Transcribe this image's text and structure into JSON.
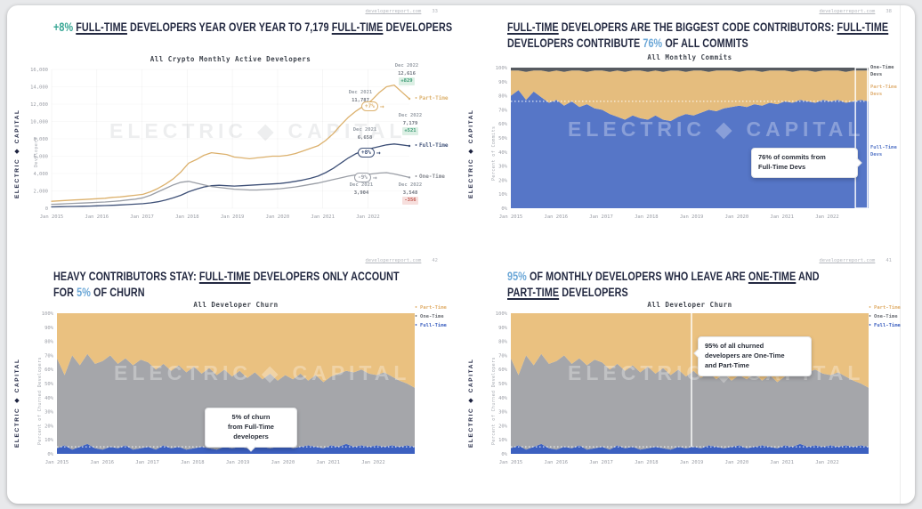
{
  "corner": {
    "site": "developerreport.com"
  },
  "slides": [
    {
      "page_num": "33",
      "title_lines": [
        [
          {
            "t": "+8% ",
            "s": "teal"
          },
          {
            "t": "FULL-TIME",
            "s": "u"
          },
          {
            "t": " DEVELOPERS YEAR OVER YEAR TO 7,179 ",
            "s": "plain"
          },
          {
            "t": "FULL-TIME",
            "s": "u"
          },
          {
            "t": " DEVELOPERS",
            "s": "plain"
          }
        ]
      ],
      "brand": "ELECTRIC ◆ CAPITAL",
      "watermark": "ELECTRIC ◆ CAPITAL"
    },
    {
      "page_num": "38",
      "title_lines": [
        [
          {
            "t": "FULL-TIME",
            "s": "u"
          },
          {
            "t": " DEVELOPERS ARE THE BIGGEST CODE CONTRIBUTORS: ",
            "s": "plain"
          },
          {
            "t": "FULL-TIME",
            "s": "u"
          }
        ],
        [
          {
            "t": "DEVELOPERS CONTRIBUTE ",
            "s": "plain"
          },
          {
            "t": "76%",
            "s": "blue"
          },
          {
            "t": " OF ALL COMMITS",
            "s": "plain"
          }
        ]
      ],
      "brand": "ELECTRIC ◆ CAPITAL",
      "watermark": "ELECTRIC ◆ CAPITAL"
    },
    {
      "page_num": "42",
      "title_lines": [
        [
          {
            "t": "HEAVY CONTRIBUTORS STAY: ",
            "s": "plain"
          },
          {
            "t": "FULL-TIME",
            "s": "u"
          },
          {
            "t": " DEVELOPERS ONLY ACCOUNT",
            "s": "plain"
          }
        ],
        [
          {
            "t": "FOR ",
            "s": "plain"
          },
          {
            "t": "5%",
            "s": "blue"
          },
          {
            "t": " OF CHURN",
            "s": "plain"
          }
        ]
      ],
      "brand": "ELECTRIC ◆ CAPITAL",
      "watermark": "ELECTRIC ◆ CAPITAL"
    },
    {
      "page_num": "41",
      "title_lines": [
        [
          {
            "t": "95%",
            "s": "blue"
          },
          {
            "t": " OF MONTHLY DEVELOPERS WHO LEAVE ARE ",
            "s": "plain"
          },
          {
            "t": "ONE-TIME",
            "s": "u"
          },
          {
            "t": " AND",
            "s": "plain"
          }
        ],
        [
          {
            "t": "PART-TIME",
            "s": "u"
          },
          {
            "t": " DEVELOPERS",
            "s": "plain"
          }
        ]
      ],
      "brand": "ELECTRIC ◆ CAPITAL",
      "watermark": "ELECTRIC ◆ CAPITAL"
    }
  ],
  "chart_data": [
    {
      "type": "line",
      "title": "All Crypto Monthly Active Developers",
      "ylabel": "Developers",
      "ymax": 16000,
      "ylim": [
        0,
        16000
      ],
      "grid": true,
      "y_tick_labels": [
        "16,000",
        "14,000",
        "12,000",
        "10,000",
        "8,000",
        "6,000",
        "4,000",
        "2,000",
        "0"
      ],
      "x_ticks": [
        "Jan 2015",
        "Jan 2016",
        "Jan 2017",
        "Jan 2018",
        "Jan 2019",
        "Jan 2020",
        "Jan 2021",
        "Jan 2022"
      ],
      "series": [
        {
          "name": "Part-Time",
          "color": "#dcb16d",
          "values": [
            800,
            850,
            900,
            950,
            1000,
            1050,
            1100,
            1150,
            1250,
            1300,
            1400,
            1500,
            1600,
            1900,
            2300,
            2800,
            3400,
            4200,
            5200,
            5600,
            6100,
            6400,
            6300,
            6200,
            5900,
            5800,
            5700,
            5800,
            5900,
            6000,
            6000,
            6100,
            6300,
            6600,
            6900,
            7200,
            7800,
            8600,
            9600,
            10500,
            11200,
            11787,
            12400,
            13300,
            14000,
            14200,
            13400,
            12616
          ]
        },
        {
          "name": "Full-Time",
          "color": "#3e5077",
          "values": [
            150,
            170,
            190,
            210,
            230,
            250,
            280,
            310,
            340,
            380,
            420,
            470,
            520,
            620,
            750,
            950,
            1200,
            1500,
            1900,
            2200,
            2450,
            2600,
            2650,
            2600,
            2550,
            2600,
            2650,
            2700,
            2750,
            2800,
            2850,
            2950,
            3100,
            3250,
            3450,
            3700,
            4100,
            4600,
            5200,
            5800,
            6300,
            6658,
            6900,
            7100,
            7300,
            7400,
            7300,
            7179
          ]
        },
        {
          "name": "One-Time",
          "color": "#9a9ea6",
          "values": [
            450,
            480,
            520,
            560,
            600,
            640,
            680,
            720,
            780,
            850,
            950,
            1050,
            1200,
            1500,
            1900,
            2300,
            2700,
            3000,
            3100,
            2900,
            2700,
            2500,
            2400,
            2300,
            2200,
            2150,
            2100,
            2100,
            2150,
            2200,
            2250,
            2350,
            2450,
            2600,
            2750,
            2900,
            3100,
            3300,
            3500,
            3700,
            3850,
            3904,
            3950,
            4050,
            4100,
            3950,
            3750,
            3548
          ]
        }
      ],
      "marker": "•",
      "annotations": {
        "part_time": {
          "prev_date": "Dec 2021",
          "prev_value": "11,787",
          "end_date": "Dec 2022",
          "end_value": "12,616",
          "delta": "+829",
          "pct": "+7%"
        },
        "full_time": {
          "prev_date": "Dec 2021",
          "prev_value": "6,658",
          "end_date": "Dec 2022",
          "end_value": "7,179",
          "delta": "+521",
          "pct": "+8%"
        },
        "one_time": {
          "prev_date": "Dec 2021",
          "prev_value": "3,904",
          "end_date": "Dec 2022",
          "end_value": "3,548",
          "delta": "-356",
          "pct": "-9%"
        }
      }
    },
    {
      "type": "area",
      "stack": "commits",
      "title": "All Monthly Commits",
      "ylabel": "Percent of Commits",
      "ymax": 100,
      "ylim": [
        0,
        100
      ],
      "y_tick_labels": [
        "100%",
        "90%",
        "80%",
        "70%",
        "60%",
        "50%",
        "40%",
        "30%",
        "20%",
        "10%",
        "0%"
      ],
      "x_ticks": [
        "Jan 2015",
        "Jan 2016",
        "Jan 2017",
        "Jan 2018",
        "Jan 2019",
        "Jan 2020",
        "Jan 2021",
        "Jan 2022"
      ],
      "colors": {
        "full_time": "#5676c7",
        "part_time": "#e5bd7e",
        "one_time": "#575b61"
      },
      "arrays": {
        "full_time": [
          80,
          84,
          77,
          83,
          79,
          75,
          77,
          73,
          76,
          72,
          74,
          71,
          70,
          67,
          65,
          63,
          66,
          64,
          63,
          66,
          63,
          62,
          65,
          67,
          66,
          68,
          70,
          69,
          71,
          72,
          73,
          72,
          74,
          73,
          75,
          74,
          76,
          75,
          77,
          76,
          75,
          77,
          76,
          77,
          75,
          76,
          77,
          76
        ],
        "one_time": [
          2,
          2,
          3,
          2,
          2,
          3,
          2,
          3,
          2,
          2,
          3,
          2,
          2,
          3,
          2,
          3,
          2,
          2,
          3,
          2,
          3,
          2,
          2,
          3,
          2,
          2,
          3,
          2,
          2,
          2,
          3,
          2,
          2,
          3,
          2,
          2,
          2,
          3,
          2,
          2,
          3,
          2,
          2,
          2,
          3,
          2,
          2,
          2
        ]
      },
      "dotted_line": 76,
      "highlight_band": [
        0.963,
        0.997
      ],
      "right_labels": {
        "one_time": "One-Time\nDevs",
        "part_time": "Part-Time\nDevs",
        "full_time": "Full-Time\nDevs"
      },
      "callout": {
        "line1": "76% of commits from",
        "line2": "Full-Time Devs"
      }
    },
    {
      "type": "area",
      "stack": "churn",
      "title": "All Developer Churn",
      "ylabel": "Percent of Churned Developers",
      "ymax": 100,
      "ylim": [
        0,
        100
      ],
      "y_tick_labels": [
        "100%",
        "90%",
        "80%",
        "70%",
        "60%",
        "50%",
        "40%",
        "30%",
        "20%",
        "10%",
        "0%"
      ],
      "x_ticks": [
        "Jan 2015",
        "Jan 2016",
        "Jan 2017",
        "Jan 2018",
        "Jan 2019",
        "Jan 2020",
        "Jan 2021",
        "Jan 2022"
      ],
      "colors": {
        "full_time": "#3c60c0",
        "one_time": "#a5a6aa",
        "part_time": "#eac180"
      },
      "arrays": {
        "full_time": [
          4,
          6,
          3,
          5,
          7,
          4,
          3,
          5,
          4,
          6,
          3,
          4,
          5,
          3,
          6,
          4,
          5,
          3,
          4,
          5,
          4,
          3,
          5,
          4,
          5,
          4,
          6,
          5,
          4,
          5,
          6,
          4,
          5,
          6,
          5,
          4,
          6,
          5,
          7,
          5,
          6,
          5,
          6,
          5,
          6,
          5,
          6,
          5
        ],
        "gray_top": [
          68,
          56,
          70,
          63,
          71,
          64,
          66,
          70,
          64,
          68,
          63,
          67,
          65,
          60,
          64,
          59,
          63,
          58,
          62,
          57,
          61,
          56,
          60,
          55,
          59,
          54,
          58,
          53,
          57,
          52,
          56,
          53,
          57,
          52,
          56,
          51,
          55,
          57,
          59,
          58,
          60,
          57,
          56,
          58,
          55,
          52,
          50,
          47
        ]
      },
      "dotted_line": 5,
      "marker": "•",
      "legend": [
        {
          "label": "Part-Time",
          "color": "#e0ae6a"
        },
        {
          "label": "One-Time",
          "color": "#6d7076"
        },
        {
          "label": "Full-Time",
          "color": "#3c60c0"
        }
      ],
      "callout": {
        "line1": "5% of churn",
        "line2": "from Full-Time",
        "line3": "developers"
      }
    },
    {
      "type": "area",
      "stack": "churn",
      "title": "All Developer Churn",
      "ylabel": "Percent of Churned Developers",
      "ymax": 100,
      "ylim": [
        0,
        100
      ],
      "y_tick_labels": [
        "100%",
        "90%",
        "80%",
        "70%",
        "60%",
        "50%",
        "40%",
        "30%",
        "20%",
        "10%",
        "0%"
      ],
      "x_ticks": [
        "Jan 2015",
        "Jan 2016",
        "Jan 2017",
        "Jan 2018",
        "Jan 2019",
        "Jan 2020",
        "Jan 2021",
        "Jan 2022"
      ],
      "colors": {
        "full_time": "#3c60c0",
        "one_time": "#a5a6aa",
        "part_time": "#eac180"
      },
      "arrays": {
        "full_time": [
          4,
          6,
          3,
          5,
          7,
          4,
          3,
          5,
          4,
          6,
          3,
          4,
          5,
          3,
          6,
          4,
          5,
          3,
          4,
          5,
          4,
          3,
          5,
          4,
          5,
          4,
          6,
          5,
          4,
          5,
          6,
          4,
          5,
          6,
          5,
          4,
          6,
          5,
          7,
          5,
          6,
          5,
          6,
          5,
          6,
          5,
          6,
          5
        ],
        "gray_top": [
          68,
          56,
          70,
          63,
          71,
          64,
          66,
          70,
          64,
          68,
          63,
          67,
          65,
          60,
          64,
          59,
          63,
          58,
          62,
          57,
          61,
          56,
          60,
          55,
          59,
          54,
          58,
          53,
          57,
          52,
          56,
          53,
          57,
          52,
          56,
          51,
          55,
          57,
          59,
          58,
          60,
          57,
          56,
          58,
          55,
          52,
          50,
          47
        ]
      },
      "dotted_line": 5,
      "vline_frac": 0.505,
      "marker": "•",
      "legend": [
        {
          "label": "Part-Time",
          "color": "#e0ae6a"
        },
        {
          "label": "One-Time",
          "color": "#6d7076"
        },
        {
          "label": "Full-Time",
          "color": "#3c60c0"
        }
      ],
      "callout": {
        "line1": "95% of all churned",
        "line2": "developers are One-Time",
        "line3": "and Part-Time"
      }
    }
  ]
}
